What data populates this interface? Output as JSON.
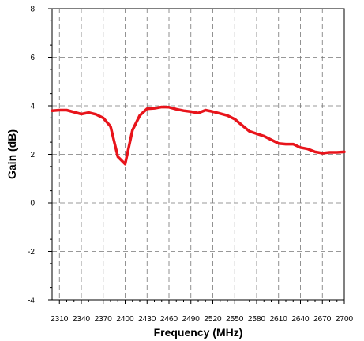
{
  "chart_data": {
    "type": "line",
    "title": "",
    "xlabel": "Frequency (MHz)",
    "ylabel": "Gain (dB)",
    "xlim": [
      2300,
      2700
    ],
    "ylim": [
      -4,
      8
    ],
    "x_ticks": [
      2310,
      2340,
      2370,
      2400,
      2430,
      2460,
      2490,
      2520,
      2550,
      2580,
      2610,
      2640,
      2670,
      2700
    ],
    "y_ticks": [
      -4,
      -2,
      0,
      2,
      4,
      6,
      8
    ],
    "grid": true,
    "grid_style": "dashed",
    "legend": "none",
    "series": [
      {
        "color": "#e8141b",
        "x": [
          2300,
          2310,
          2320,
          2330,
          2340,
          2350,
          2360,
          2370,
          2380,
          2390,
          2400,
          2410,
          2420,
          2430,
          2440,
          2450,
          2460,
          2470,
          2480,
          2490,
          2500,
          2510,
          2520,
          2530,
          2540,
          2550,
          2560,
          2570,
          2580,
          2590,
          2600,
          2610,
          2620,
          2630,
          2640,
          2650,
          2660,
          2670,
          2680,
          2690,
          2700
        ],
        "y": [
          3.8,
          3.82,
          3.82,
          3.74,
          3.66,
          3.72,
          3.65,
          3.5,
          3.15,
          1.9,
          1.6,
          3.0,
          3.6,
          3.88,
          3.9,
          3.95,
          3.94,
          3.86,
          3.8,
          3.76,
          3.7,
          3.82,
          3.76,
          3.68,
          3.6,
          3.45,
          3.2,
          2.95,
          2.85,
          2.75,
          2.6,
          2.45,
          2.42,
          2.42,
          2.28,
          2.22,
          2.1,
          2.05,
          2.08,
          2.08,
          2.1
        ]
      }
    ]
  }
}
